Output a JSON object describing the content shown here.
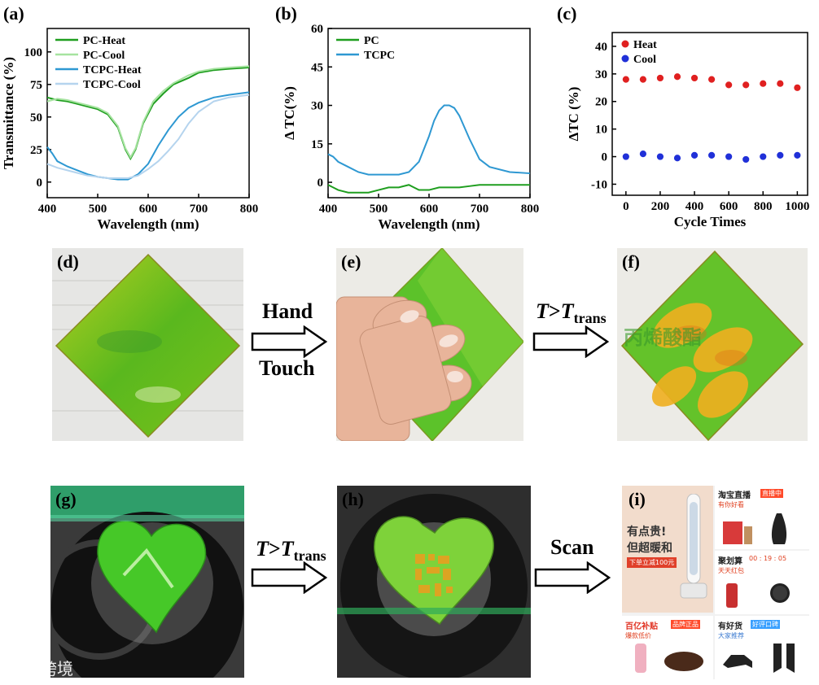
{
  "chart_data": [
    {
      "id": "a",
      "type": "line",
      "panel_label": "(a)",
      "xlabel": "Wavelength (nm)",
      "ylabel": "Transmittance (%)",
      "xlim": [
        400,
        800
      ],
      "ylim": [
        -12,
        118
      ],
      "xticks": [
        400,
        500,
        600,
        700,
        800
      ],
      "yticks": [
        0,
        25,
        50,
        75,
        100
      ],
      "legend_position": "top-left",
      "series": [
        {
          "name": "PC-Heat",
          "color": "#1f9e1f",
          "x": [
            400,
            420,
            440,
            460,
            480,
            500,
            520,
            540,
            555,
            565,
            575,
            590,
            610,
            630,
            650,
            680,
            700,
            730,
            760,
            800
          ],
          "y": [
            65,
            63,
            62,
            60,
            58,
            56,
            52,
            42,
            25,
            18,
            25,
            45,
            60,
            68,
            75,
            80,
            84,
            86,
            87,
            88
          ]
        },
        {
          "name": "PC-Cool",
          "color": "#a6e3a0",
          "x": [
            400,
            420,
            440,
            460,
            480,
            500,
            520,
            540,
            555,
            565,
            575,
            590,
            610,
            630,
            650,
            680,
            700,
            730,
            760,
            800
          ],
          "y": [
            62,
            64,
            63,
            61,
            59,
            57,
            53,
            43,
            26,
            19,
            26,
            46,
            62,
            70,
            76,
            82,
            85,
            87,
            88,
            89
          ]
        },
        {
          "name": "TCPC-Heat",
          "color": "#2e98d2",
          "x": [
            400,
            410,
            420,
            440,
            460,
            480,
            500,
            520,
            540,
            560,
            580,
            600,
            620,
            640,
            660,
            680,
            700,
            730,
            760,
            800
          ],
          "y": [
            27,
            22,
            16,
            12,
            9,
            6,
            4,
            3,
            2,
            2,
            6,
            14,
            28,
            40,
            50,
            57,
            61,
            65,
            67,
            69
          ]
        },
        {
          "name": "TCPC-Cool",
          "color": "#b5d4ee",
          "x": [
            400,
            420,
            440,
            460,
            480,
            500,
            520,
            540,
            560,
            580,
            600,
            620,
            640,
            660,
            680,
            700,
            730,
            760,
            800
          ],
          "y": [
            14,
            11,
            9,
            7,
            5,
            4,
            3,
            3,
            3,
            5,
            10,
            16,
            24,
            33,
            45,
            54,
            62,
            65,
            67
          ]
        }
      ]
    },
    {
      "id": "b",
      "type": "line",
      "panel_label": "(b)",
      "xlabel": "Wavelength (nm)",
      "ylabel": "Δ TC(%)",
      "xlim": [
        400,
        800
      ],
      "ylim": [
        -6,
        60
      ],
      "xticks": [
        400,
        500,
        600,
        700,
        800
      ],
      "yticks": [
        0,
        15,
        30,
        45,
        60
      ],
      "legend_position": "top-left",
      "series": [
        {
          "name": "PC",
          "color": "#1f9e1f",
          "x": [
            400,
            410,
            420,
            440,
            460,
            480,
            500,
            520,
            540,
            560,
            570,
            580,
            600,
            620,
            640,
            660,
            680,
            700,
            740,
            800
          ],
          "y": [
            -1,
            -2,
            -3,
            -4,
            -4,
            -4,
            -3,
            -2,
            -2,
            -1,
            -2,
            -3,
            -3,
            -2,
            -2,
            -2,
            -1.5,
            -1,
            -1,
            -1
          ]
        },
        {
          "name": "TCPC",
          "color": "#2e98d2",
          "x": [
            400,
            410,
            420,
            440,
            460,
            480,
            500,
            520,
            540,
            560,
            580,
            600,
            610,
            620,
            630,
            640,
            650,
            660,
            680,
            700,
            720,
            760,
            800
          ],
          "y": [
            11,
            10,
            8,
            6,
            4,
            3,
            3,
            3,
            3,
            4,
            8,
            18,
            24,
            28,
            30,
            30,
            29,
            26,
            17,
            9,
            6,
            4,
            3.5
          ]
        }
      ]
    },
    {
      "id": "c",
      "type": "scatter",
      "panel_label": "(c)",
      "xlabel": "Cycle Times",
      "ylabel": "ΔTC (%)",
      "xlim": [
        -80,
        1060
      ],
      "ylim": [
        -14,
        45
      ],
      "xticks": [
        0,
        200,
        400,
        600,
        800,
        1000
      ],
      "yticks": [
        -10,
        0,
        10,
        20,
        30,
        40
      ],
      "legend_position": "top-left",
      "series": [
        {
          "name": "Heat",
          "color": "#e02020",
          "x": [
            0,
            100,
            200,
            300,
            400,
            500,
            600,
            700,
            800,
            900,
            1000
          ],
          "y": [
            28,
            28,
            28.5,
            29,
            28.5,
            28,
            26,
            26,
            26.5,
            26.5,
            25
          ]
        },
        {
          "name": "Cool",
          "color": "#2030d8",
          "x": [
            0,
            100,
            200,
            300,
            400,
            500,
            600,
            700,
            800,
            900,
            1000
          ],
          "y": [
            0,
            1,
            0,
            -0.5,
            0.5,
            0.5,
            0,
            -1,
            0,
            0.5,
            0.5
          ]
        }
      ]
    }
  ],
  "photos": {
    "d": {
      "label": "(d)"
    },
    "e": {
      "label": "(e)"
    },
    "f": {
      "label": "(f)"
    },
    "g": {
      "label": "(g)"
    },
    "h": {
      "label": "(h)"
    },
    "i": {
      "label": "(i)"
    }
  },
  "arrows": {
    "hand_touch_top": "Hand",
    "hand_touch_bottom": "Touch",
    "heat_1": {
      "t": "T",
      "gt": ">",
      "T": "T",
      "sub": "trans"
    },
    "heat_2": {
      "t": "T",
      "gt": ">",
      "T": "T",
      "sub": "trans"
    },
    "scan": "Scan"
  },
  "panel_i_app": {
    "banner_line1": "有点贵!",
    "banner_line2": "但超暖和",
    "banner_btn": "下单立减100元",
    "live_title": "淘宝直播",
    "live_badge": "直播中",
    "live_sub": "有你好看",
    "juhuasuan_title": "聚划算",
    "juhuasuan_time": "00 : 19 : 05",
    "juhuasuan_sub": "天天红包",
    "baiyi_title": "百亿补贴",
    "baiyi_badge": "品牌正品",
    "baiyi_sub": "爆款低价",
    "youhaohuo_title": "有好货",
    "youhaohuo_badge": "好评口碑",
    "youhaohuo_sub": "大家推荐"
  },
  "watermark": "大数跨境",
  "background_text_f": "丙烯酸酯"
}
